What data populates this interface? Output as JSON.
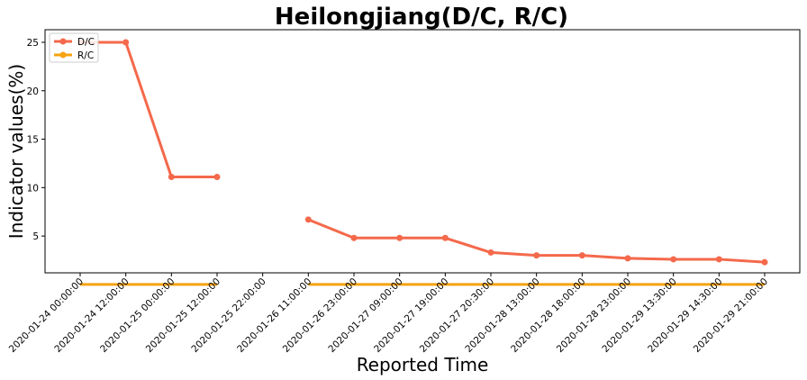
{
  "chart_data": {
    "type": "line",
    "title": "Heilongjiang(D/C, R/C)",
    "xlabel": "Reported Time",
    "ylabel": "Indicator values(%)",
    "categories": [
      "2020-01-24 00:00:00",
      "2020-01-24 12:00:00",
      "2020-01-25 00:00:00",
      "2020-01-25 12:00:00",
      "2020-01-25 22:00:00",
      "2020-01-26 11:00:00",
      "2020-01-26 23:00:00",
      "2020-01-27 09:00:00",
      "2020-01-27 19:00:00",
      "2020-01-27 20:30:00",
      "2020-01-28 13:00:00",
      "2020-01-28 18:00:00",
      "2020-01-28 23:00:00",
      "2020-01-29 13:30:00",
      "2020-01-29 14:30:00",
      "2020-01-29 21:00:00"
    ],
    "series": [
      {
        "name": "D/C",
        "color": "#f4694b",
        "values": [
          25.0,
          25.0,
          11.1,
          11.1,
          null,
          6.7,
          4.8,
          4.8,
          4.8,
          3.3,
          3.0,
          3.0,
          2.7,
          2.6,
          2.6,
          2.3
        ]
      },
      {
        "name": "R/C",
        "color": "#f5a30f",
        "values": [
          0,
          0,
          0,
          0,
          null,
          0,
          0,
          0,
          0,
          0,
          0,
          0,
          0,
          0,
          0,
          0
        ]
      }
    ],
    "ylim": [
      1.2,
      26.3
    ],
    "yticks": [
      5,
      10,
      15,
      20,
      25
    ],
    "grid": false,
    "legend": "top-left"
  }
}
